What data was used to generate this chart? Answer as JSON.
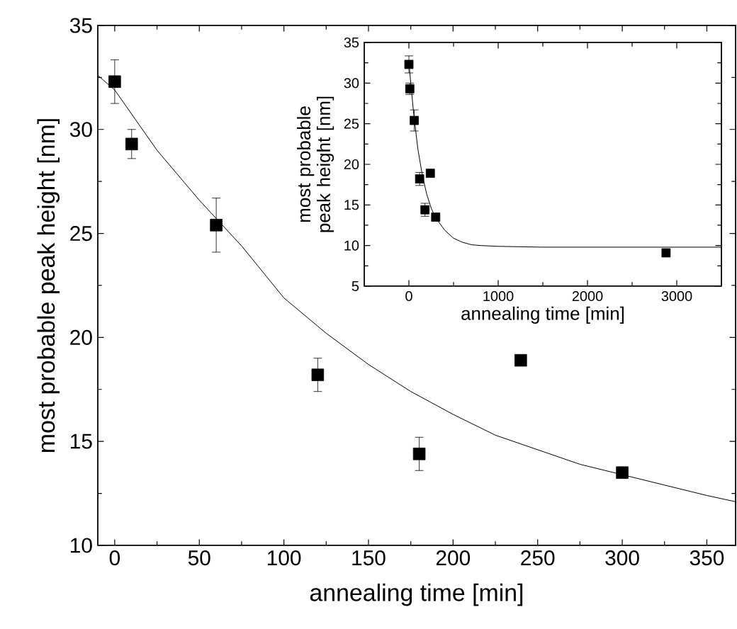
{
  "chart_data": [
    {
      "type": "scatter",
      "xlabel": "annealing time [min]",
      "ylabel": "most probable peak height [nm]",
      "xlim": [
        -10,
        367
      ],
      "ylim": [
        10,
        35
      ],
      "xticks": [
        0,
        50,
        100,
        150,
        200,
        250,
        300,
        350
      ],
      "yticks": [
        10,
        15,
        20,
        25,
        30,
        35
      ],
      "marker": "square",
      "series": [
        {
          "color": "#000000",
          "x": [
            0,
            10,
            60,
            120,
            180,
            240,
            300
          ],
          "values": [
            32.3,
            29.3,
            25.4,
            18.2,
            14.4,
            18.9,
            13.5
          ],
          "errors": [
            1.05,
            0.7,
            1.3,
            0.8,
            0.8,
            null,
            null
          ]
        },
        {
          "type": "line",
          "color": "#000000",
          "marker": "none",
          "x": [
            -10,
            0,
            25,
            50,
            75,
            100,
            125,
            150,
            175,
            200,
            225,
            250,
            275,
            300,
            325,
            350,
            367
          ],
          "values": [
            32.6,
            31.9,
            29.0,
            26.6,
            24.4,
            21.9,
            20.2,
            18.7,
            17.4,
            16.3,
            15.3,
            14.6,
            13.9,
            13.4,
            12.9,
            12.4,
            12.1
          ]
        }
      ]
    },
    {
      "type": "scatter",
      "xlabel": "annealing time [min]",
      "ylabel": "most probable peak height [nm]",
      "xlim": [
        -500,
        3500
      ],
      "ylim": [
        5,
        35
      ],
      "xticks": [
        0,
        1000,
        2000,
        3000
      ],
      "yticks": [
        5,
        10,
        15,
        20,
        25,
        30,
        35
      ],
      "marker": "square",
      "series": [
        {
          "color": "#000000",
          "x": [
            0,
            10,
            60,
            120,
            180,
            240,
            300,
            2880
          ],
          "values": [
            32.3,
            29.3,
            25.4,
            18.2,
            14.4,
            18.9,
            13.5,
            9.1
          ],
          "errors": [
            1.05,
            0.7,
            1.3,
            0.8,
            0.8,
            null,
            null,
            null
          ]
        },
        {
          "type": "line",
          "color": "#000000",
          "marker": "none",
          "x": [
            0,
            50,
            100,
            150,
            200,
            250,
            300,
            400,
            500,
            600,
            700,
            800,
            1000,
            1500,
            2000,
            2500,
            3000,
            3500
          ],
          "values": [
            32.5,
            26.6,
            21.9,
            18.7,
            16.3,
            14.6,
            13.4,
            11.9,
            10.9,
            10.4,
            10.1,
            10.0,
            9.9,
            9.8,
            9.8,
            9.8,
            9.8,
            9.8
          ]
        }
      ]
    }
  ]
}
